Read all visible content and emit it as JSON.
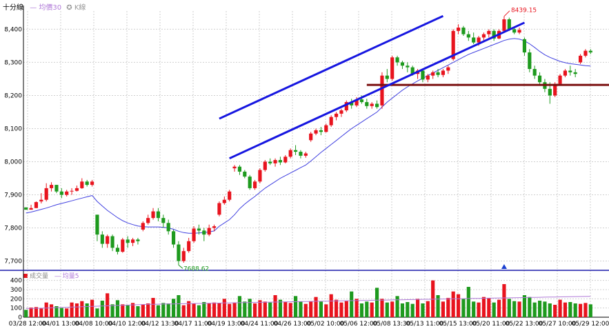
{
  "header": {
    "interval": "十分線",
    "ma_label": "均價30",
    "kline_label": "K線"
  },
  "volume_header": {
    "volume_label": "成交量",
    "volume_ma_label": "均量5"
  },
  "colors": {
    "up": "#e8141e",
    "down": "#1e9a1e",
    "ma": "#4040e0",
    "trendline": "#1616e0",
    "support": "#7a0f0f",
    "axis_line": "#1a1aaa",
    "grid": "#cfcfcf",
    "marker": "#1a3fd0"
  },
  "chart_data": {
    "type": "candlestick",
    "price_axis": {
      "ticks": [
        "7,700",
        "7,800",
        "7,900",
        "8,000",
        "8,100",
        "8,200",
        "8,300",
        "8,400"
      ],
      "ylim": [
        7672,
        8455
      ]
    },
    "volume_axis": {
      "ticks": [
        "0",
        "100",
        "200",
        "300",
        "400"
      ],
      "ylim": [
        0,
        420
      ]
    },
    "x_tick_labels": [
      "03/28 12:00",
      "04/01 13:00",
      "04/08 10:00",
      "04/10 12:00",
      "04/12 13:30",
      "04/17 11:00",
      "04/19 13:00",
      "04/24 11:00",
      "04/26 13:00",
      "05/02 10:00",
      "05/06 12:00",
      "05/08 13:30",
      "05/13 11:00",
      "05/15 13:00",
      "05/20 11:00",
      "05/22 13:00",
      "05/27 10:00",
      "05/29 12:00"
    ],
    "annotations": {
      "high": "8439.15",
      "low": "7688.62"
    },
    "support_level": 8232,
    "trendlines": [
      {
        "from": [
          38,
          8130
        ],
        "to": [
          82,
          8440
        ]
      },
      {
        "from": [
          40,
          8010
        ],
        "to": [
          98,
          8420
        ]
      }
    ],
    "candles": [
      [
        7862,
        7862,
        7855,
        7855
      ],
      [
        7855,
        7870,
        7858,
        7860
      ],
      [
        7860,
        7880,
        7860,
        7878
      ],
      [
        7880,
        7905,
        7874,
        7885
      ],
      [
        7885,
        7935,
        7880,
        7920
      ],
      [
        7920,
        7938,
        7910,
        7930
      ],
      [
        7930,
        7930,
        7905,
        7910
      ],
      [
        7910,
        7920,
        7890,
        7900
      ],
      [
        7900,
        7915,
        7895,
        7910
      ],
      [
        7910,
        7920,
        7900,
        7912
      ],
      [
        7912,
        7928,
        7910,
        7920
      ],
      [
        7920,
        7950,
        7918,
        7940
      ],
      [
        7940,
        7945,
        7925,
        7930
      ],
      [
        7930,
        7945,
        7925,
        7940
      ],
      [
        7840,
        7840,
        7760,
        7780
      ],
      [
        7780,
        7790,
        7740,
        7752
      ],
      [
        7752,
        7780,
        7740,
        7775
      ],
      [
        7775,
        7780,
        7730,
        7740
      ],
      [
        7740,
        7750,
        7720,
        7728
      ],
      [
        7728,
        7770,
        7725,
        7765
      ],
      [
        7765,
        7775,
        7740,
        7755
      ],
      [
        7755,
        7770,
        7745,
        7765
      ],
      [
        7765,
        7770,
        7750,
        7760
      ],
      [
        7795,
        7820,
        7790,
        7815
      ],
      [
        7815,
        7840,
        7810,
        7830
      ],
      [
        7830,
        7860,
        7825,
        7850
      ],
      [
        7850,
        7860,
        7820,
        7830
      ],
      [
        7830,
        7840,
        7800,
        7815
      ],
      [
        7815,
        7825,
        7780,
        7790
      ],
      [
        7790,
        7795,
        7740,
        7750
      ],
      [
        7750,
        7760,
        7688,
        7700
      ],
      [
        7700,
        7740,
        7695,
        7730
      ],
      [
        7730,
        7770,
        7725,
        7760
      ],
      [
        7760,
        7805,
        7755,
        7798
      ],
      [
        7798,
        7810,
        7780,
        7792
      ],
      [
        7792,
        7800,
        7760,
        7780
      ],
      [
        7780,
        7810,
        7775,
        7800
      ],
      [
        7800,
        7810,
        7790,
        7805
      ],
      [
        7840,
        7880,
        7835,
        7875
      ],
      [
        7875,
        7895,
        7870,
        7885
      ],
      [
        7885,
        7915,
        7880,
        7910
      ],
      [
        7980,
        7990,
        7970,
        7985
      ],
      [
        7985,
        7990,
        7960,
        7970
      ],
      [
        7970,
        7975,
        7950,
        7955
      ],
      [
        7955,
        7960,
        7915,
        7920
      ],
      [
        7920,
        7945,
        7915,
        7940
      ],
      [
        7940,
        7980,
        7935,
        7975
      ],
      [
        7975,
        8005,
        7970,
        8000
      ],
      [
        8000,
        8010,
        7990,
        7995
      ],
      [
        7995,
        8010,
        7985,
        8005
      ],
      [
        8005,
        8015,
        7990,
        7998
      ],
      [
        7998,
        8020,
        7995,
        8015
      ],
      [
        8015,
        8040,
        8010,
        8035
      ],
      [
        8035,
        8050,
        8020,
        8030
      ],
      [
        8030,
        8035,
        8010,
        8018
      ],
      [
        8018,
        8030,
        8012,
        8025
      ],
      [
        8065,
        8090,
        8060,
        8085
      ],
      [
        8085,
        8100,
        8080,
        8095
      ],
      [
        8095,
        8105,
        8080,
        8090
      ],
      [
        8090,
        8115,
        8088,
        8110
      ],
      [
        8110,
        8140,
        8105,
        8135
      ],
      [
        8135,
        8150,
        8125,
        8145
      ],
      [
        8145,
        8160,
        8135,
        8155
      ],
      [
        8155,
        8185,
        8150,
        8180
      ],
      [
        8180,
        8190,
        8160,
        8170
      ],
      [
        8170,
        8195,
        8165,
        8188
      ],
      [
        8188,
        8200,
        8175,
        8180
      ],
      [
        8180,
        8190,
        8160,
        8168
      ],
      [
        8168,
        8180,
        8160,
        8175
      ],
      [
        8175,
        8185,
        8160,
        8165
      ],
      [
        8170,
        8270,
        8160,
        8260
      ],
      [
        8260,
        8280,
        8240,
        8250
      ],
      [
        8250,
        8320,
        8245,
        8315
      ],
      [
        8315,
        8320,
        8290,
        8300
      ],
      [
        8300,
        8305,
        8280,
        8290
      ],
      [
        8290,
        8300,
        8270,
        8285
      ],
      [
        8285,
        8290,
        8260,
        8265
      ],
      [
        8265,
        8280,
        8250,
        8275
      ],
      [
        8275,
        8280,
        8240,
        8248
      ],
      [
        8248,
        8265,
        8240,
        8260
      ],
      [
        8260,
        8275,
        8250,
        8270
      ],
      [
        8270,
        8280,
        8255,
        8262
      ],
      [
        8262,
        8280,
        8255,
        8275
      ],
      [
        8275,
        8290,
        8265,
        8285
      ],
      [
        8310,
        8400,
        8305,
        8395
      ],
      [
        8395,
        8415,
        8385,
        8405
      ],
      [
        8405,
        8410,
        8380,
        8385
      ],
      [
        8385,
        8395,
        8365,
        8375
      ],
      [
        8375,
        8390,
        8355,
        8360
      ],
      [
        8360,
        8380,
        8350,
        8375
      ],
      [
        8375,
        8390,
        8365,
        8385
      ],
      [
        8385,
        8400,
        8375,
        8395
      ],
      [
        8395,
        8400,
        8365,
        8372
      ],
      [
        8372,
        8400,
        8370,
        8395
      ],
      [
        8395,
        8439,
        8390,
        8430
      ],
      [
        8430,
        8435,
        8395,
        8400
      ],
      [
        8400,
        8405,
        8385,
        8390
      ],
      [
        8390,
        8405,
        8385,
        8398
      ],
      [
        8370,
        8375,
        8320,
        8330
      ],
      [
        8330,
        8340,
        8270,
        8280
      ],
      [
        8280,
        8290,
        8250,
        8260
      ],
      [
        8260,
        8270,
        8230,
        8240
      ],
      [
        8240,
        8250,
        8210,
        8220
      ],
      [
        8220,
        8240,
        8175,
        8200
      ],
      [
        8200,
        8240,
        8195,
        8235
      ],
      [
        8235,
        8265,
        8230,
        8260
      ],
      [
        8260,
        8280,
        8255,
        8275
      ],
      [
        8275,
        8290,
        8260,
        8270
      ],
      [
        8270,
        8280,
        8255,
        8265
      ],
      [
        8300,
        8325,
        8295,
        8320
      ],
      [
        8320,
        8340,
        8315,
        8335
      ],
      [
        8335,
        8340,
        8325,
        8330
      ]
    ],
    "ma": [
      7845,
      7848,
      7852,
      7856,
      7860,
      7865,
      7870,
      7874,
      7878,
      7882,
      7886,
      7890,
      7894,
      7898,
      7880,
      7866,
      7853,
      7842,
      7831,
      7822,
      7815,
      7810,
      7806,
      7804,
      7803,
      7803,
      7803,
      7802,
      7800,
      7796,
      7790,
      7786,
      7784,
      7784,
      7785,
      7786,
      7788,
      7791,
      7805,
      7815,
      7825,
      7840,
      7858,
      7872,
      7884,
      7895,
      7908,
      7920,
      7930,
      7940,
      7950,
      7958,
      7966,
      7974,
      7982,
      7990,
      8002,
      8015,
      8028,
      8040,
      8052,
      8064,
      8076,
      8088,
      8100,
      8110,
      8120,
      8130,
      8140,
      8150,
      8165,
      8180,
      8192,
      8204,
      8216,
      8226,
      8235,
      8244,
      8252,
      8260,
      8268,
      8276,
      8284,
      8292,
      8300,
      8308,
      8316,
      8324,
      8330,
      8336,
      8342,
      8348,
      8354,
      8360,
      8366,
      8370,
      8372,
      8370,
      8365,
      8356,
      8345,
      8333,
      8323,
      8315,
      8309,
      8303,
      8299,
      8296,
      8294,
      8292,
      8290,
      8289
    ],
    "volume": [
      80,
      105,
      110,
      95,
      160,
      140,
      120,
      100,
      95,
      160,
      150,
      175,
      150,
      190,
      95,
      180,
      260,
      140,
      185,
      140,
      130,
      155,
      120,
      140,
      150,
      210,
      130,
      155,
      150,
      200,
      240,
      130,
      175,
      150,
      130,
      165,
      150,
      160,
      155,
      200,
      145,
      160,
      230,
      170,
      200,
      150,
      185,
      170,
      160,
      240,
      190,
      165,
      155,
      230,
      170,
      145,
      175,
      220,
      170,
      140,
      250,
      190,
      160,
      175,
      280,
      200,
      150,
      170,
      160,
      320,
      200,
      160,
      170,
      230,
      150,
      165,
      145,
      200,
      150,
      175,
      400,
      240,
      170,
      210,
      280,
      250,
      200,
      330,
      170,
      160,
      220,
      210,
      160,
      190,
      360,
      200,
      175,
      170,
      240,
      220,
      160,
      180,
      170,
      150,
      135,
      190,
      160,
      165,
      150,
      145,
      155,
      140
    ],
    "volume_ma": [
      95,
      96,
      97,
      98,
      100,
      102,
      104,
      106,
      108,
      110,
      112,
      114,
      116,
      118,
      120,
      122,
      124,
      126,
      128,
      130,
      132,
      134,
      136,
      138,
      140,
      141,
      142,
      143,
      144,
      145,
      146,
      147,
      148,
      149,
      150,
      151,
      152,
      153,
      154,
      155,
      156,
      157,
      158,
      159,
      160,
      161,
      162,
      163,
      164,
      165,
      166,
      167,
      168,
      169,
      170,
      171,
      172,
      173,
      174,
      175,
      176,
      177,
      178,
      179,
      180,
      181,
      182,
      183,
      184,
      185,
      186,
      187,
      188,
      189,
      190,
      191,
      192,
      193,
      194,
      195,
      196,
      197,
      198,
      199,
      200,
      201,
      202,
      203,
      204,
      205,
      206,
      207,
      208,
      209,
      210,
      211,
      212,
      213,
      214,
      215,
      216,
      217,
      218,
      219,
      220,
      221,
      222,
      223,
      224,
      225,
      226,
      227
    ]
  }
}
